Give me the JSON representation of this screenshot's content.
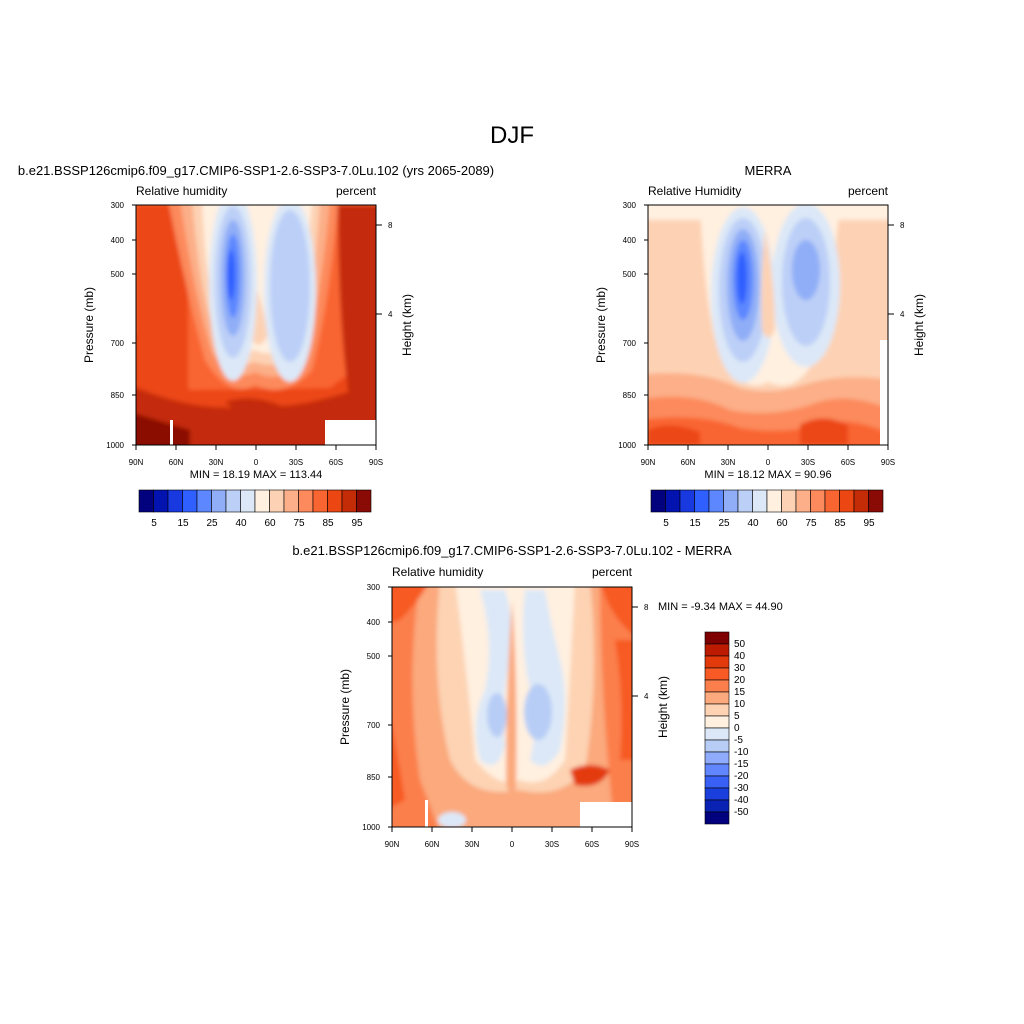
{
  "figure": {
    "title": "DJF"
  },
  "chart_data": [
    {
      "type": "contour",
      "title": "b.e21.BSSP126cmip6.f09_g17.CMIP6-SSP1-2.6-SSP3-7.0Lu.102 (yrs 2065-2089)",
      "left_label": "Relative humidity",
      "right_label": "percent",
      "ylabel": "Pressure (mb)",
      "ylabel_right": "Height (km)",
      "xticks": [
        "90N",
        "60N",
        "30N",
        "0",
        "30S",
        "60S",
        "90S"
      ],
      "yticks": [
        "300",
        "400",
        "500",
        "700",
        "850",
        "1000"
      ],
      "height_ticks": [
        "8",
        "4"
      ],
      "stats": "MIN =  18.19  MAX = 113.44",
      "colorbar_labels": [
        "5",
        "15",
        "25",
        "40",
        "60",
        "75",
        "85",
        "95"
      ]
    },
    {
      "type": "contour",
      "title": "MERRA",
      "left_label": "Relative Humidity",
      "right_label": "percent",
      "ylabel": "Pressure (mb)",
      "ylabel_right": "Height (km)",
      "xticks": [
        "90N",
        "60N",
        "30N",
        "0",
        "30S",
        "60S",
        "90S"
      ],
      "yticks": [
        "300",
        "400",
        "500",
        "700",
        "850",
        "1000"
      ],
      "height_ticks": [
        "8",
        "4"
      ],
      "stats": "MIN =  18.12  MAX =  90.96",
      "colorbar_labels": [
        "5",
        "15",
        "25",
        "40",
        "60",
        "75",
        "85",
        "95"
      ]
    },
    {
      "type": "contour",
      "title": "b.e21.BSSP126cmip6.f09_g17.CMIP6-SSP1-2.6-SSP3-7.0Lu.102 - MERRA",
      "left_label": "Relative humidity",
      "right_label": "percent",
      "ylabel": "Pressure (mb)",
      "ylabel_right": "Height (km)",
      "xticks": [
        "90N",
        "60N",
        "30N",
        "0",
        "30S",
        "60S",
        "90S"
      ],
      "yticks": [
        "300",
        "400",
        "500",
        "700",
        "850",
        "1000"
      ],
      "height_ticks": [
        "8",
        "4"
      ],
      "stats": "MIN =  -9.34  MAX =  44.90",
      "colorbar_labels": [
        "50",
        "40",
        "30",
        "20",
        "15",
        "10",
        "5",
        "0",
        "-5",
        "-10",
        "-15",
        "-20",
        "-30",
        "-40",
        "-50"
      ]
    }
  ],
  "palette": {
    "abs": [
      "#02027f",
      "#0213b0",
      "#1838e0",
      "#2f5fff",
      "#5c87ff",
      "#90aef7",
      "#bccff7",
      "#dce8f8",
      "#fff0e0",
      "#fdd2b4",
      "#fcaf88",
      "#fc8a5c",
      "#f96531",
      "#ec4712",
      "#c42b07",
      "#8a0a05"
    ],
    "diff": [
      "#7f0000",
      "#bd1b00",
      "#e33a0c",
      "#f75a24",
      "#fb7f4c",
      "#fba97d",
      "#fdd3b3",
      "#fff0e0",
      "#dce8f8",
      "#b7cdf6",
      "#8eacfb",
      "#6286ff",
      "#3960f5",
      "#1b3fdc",
      "#0a22b4",
      "#02027f"
    ]
  }
}
